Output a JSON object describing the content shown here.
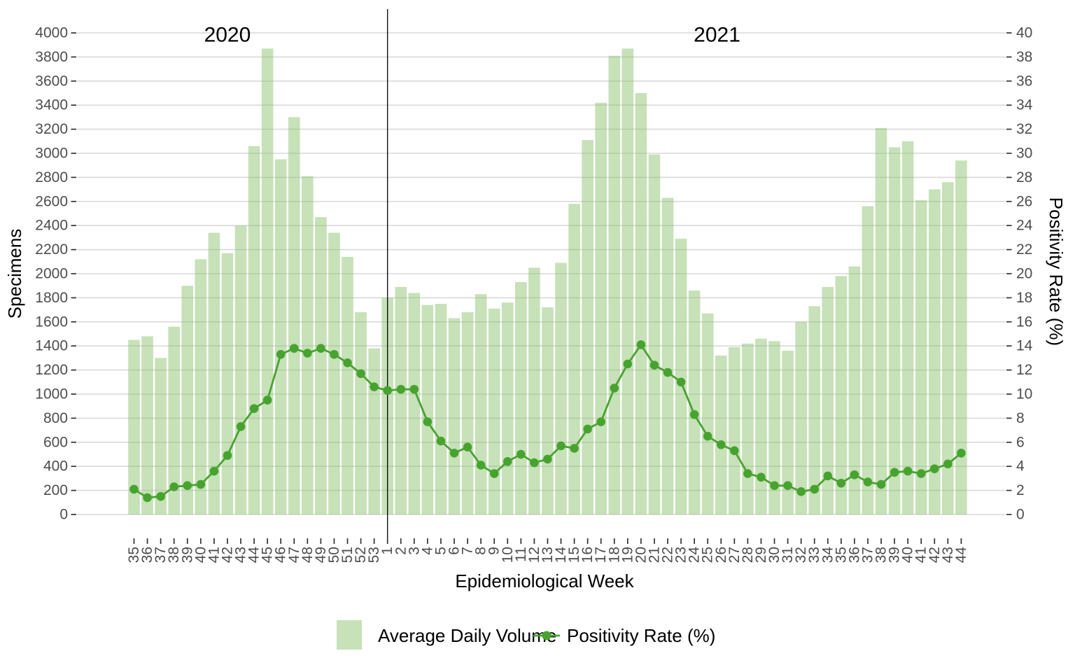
{
  "chart_data": {
    "type": "bar+line",
    "x_label": "Epidemiological Week",
    "y_left": {
      "label": "Specimens",
      "min": 0,
      "max": 4000,
      "tick_step": 200
    },
    "y_right": {
      "label": "Positivity Rate (%)",
      "min": 0,
      "max": 40,
      "tick_step": 2
    },
    "grid": true,
    "legend_position": "bottom",
    "year_annotations": [
      {
        "label": "2020",
        "center_index": 7.0
      },
      {
        "label": "2021",
        "center_index": 43.7
      }
    ],
    "separator_index": 19,
    "categories": [
      "35",
      "36",
      "37",
      "38",
      "39",
      "40",
      "41",
      "42",
      "43",
      "44",
      "45",
      "46",
      "47",
      "48",
      "49",
      "50",
      "51",
      "52",
      "53",
      "1",
      "2",
      "3",
      "4",
      "5",
      "6",
      "7",
      "8",
      "9",
      "10",
      "11",
      "12",
      "13",
      "14",
      "15",
      "16",
      "17",
      "18",
      "19",
      "20",
      "21",
      "22",
      "23",
      "24",
      "25",
      "26",
      "27",
      "28",
      "29",
      "30",
      "31",
      "32",
      "33",
      "34",
      "35",
      "36",
      "37",
      "38",
      "39",
      "40",
      "41",
      "42",
      "43",
      "44"
    ],
    "series": [
      {
        "name": "Average Daily Volume",
        "type": "bar",
        "axis": "left",
        "values": [
          1450,
          1480,
          1300,
          1560,
          1900,
          2120,
          2340,
          2170,
          2400,
          3060,
          3870,
          2950,
          3300,
          2810,
          2470,
          2340,
          2140,
          1680,
          1380,
          1800,
          1890,
          1840,
          1740,
          1750,
          1630,
          1680,
          1830,
          1710,
          1760,
          1930,
          2050,
          1720,
          2090,
          2580,
          3110,
          3420,
          3810,
          3870,
          3500,
          2990,
          2630,
          2290,
          1860,
          1670,
          1320,
          1390,
          1420,
          1460,
          1440,
          1360,
          1600,
          1730,
          1890,
          1980,
          2060,
          2560,
          3210,
          3050,
          3100,
          2610,
          2700,
          2760,
          2940
        ]
      },
      {
        "name": "Positivity Rate (%)",
        "type": "line",
        "axis": "right",
        "values": [
          2.1,
          1.4,
          1.5,
          2.3,
          2.4,
          2.5,
          3.6,
          4.9,
          7.3,
          8.8,
          9.5,
          13.3,
          13.8,
          13.4,
          13.8,
          13.3,
          12.6,
          11.7,
          10.6,
          10.3,
          10.4,
          10.4,
          7.7,
          6.1,
          5.1,
          5.6,
          4.1,
          3.4,
          4.4,
          5.0,
          4.3,
          4.6,
          5.7,
          5.5,
          7.1,
          7.7,
          10.5,
          12.5,
          14.1,
          12.4,
          11.8,
          11.0,
          8.3,
          6.5,
          5.8,
          5.3,
          3.4,
          3.1,
          2.4,
          2.4,
          1.9,
          2.1,
          3.2,
          2.6,
          3.3,
          2.7,
          2.5,
          3.5,
          3.6,
          3.4,
          3.8,
          4.2,
          5.1
        ]
      }
    ]
  },
  "colors": {
    "bar_fill_base": "#88c069",
    "bar_opacity": 0.47,
    "line": "#47a32f",
    "grid": "#d9d9d9",
    "axis_text": "#4d4d4d",
    "tick_mark": "#333333",
    "separator": "#000000",
    "title_text": "#000000"
  }
}
